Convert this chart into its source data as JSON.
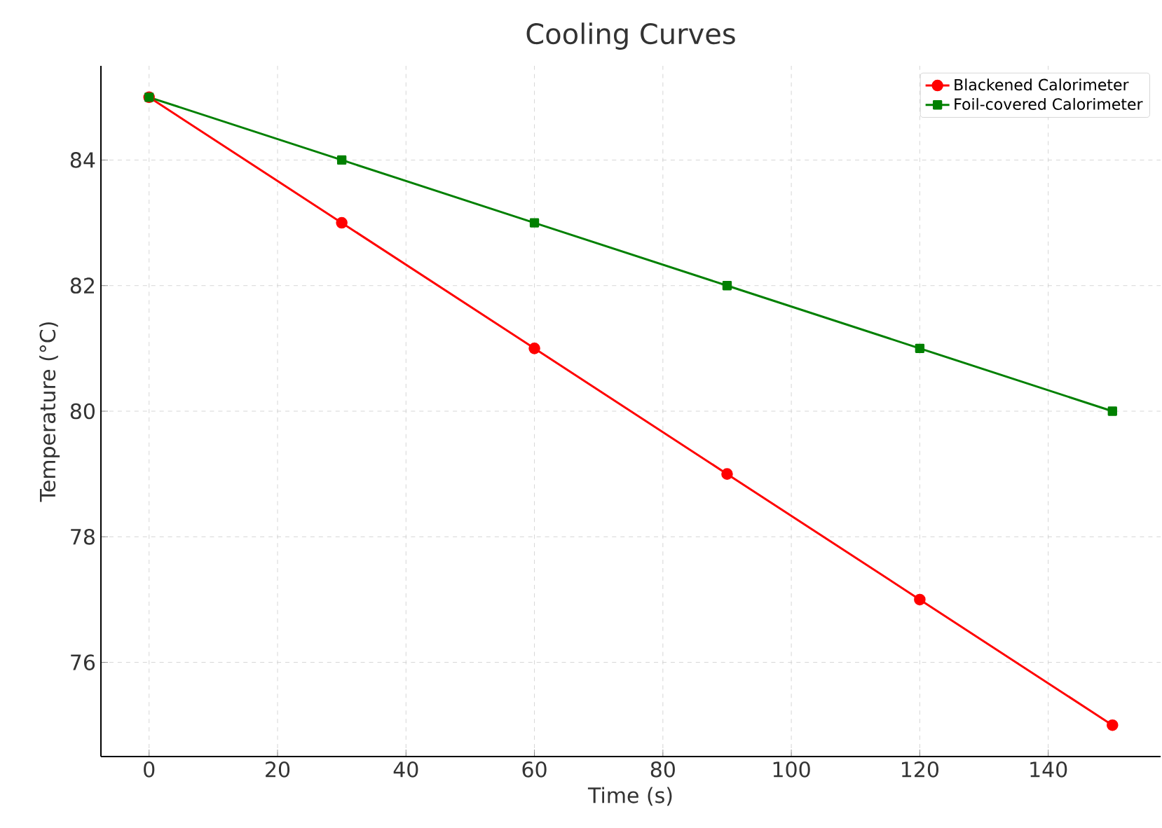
{
  "chart_data": {
    "type": "line",
    "title": "Cooling Curves",
    "xlabel": "Time (s)",
    "ylabel": "Temperature (°C)",
    "x": [
      0,
      30,
      60,
      90,
      120,
      150
    ],
    "series": [
      {
        "name": "Blackened Calorimeter",
        "color": "#ff0000",
        "marker": "circle",
        "values": [
          85,
          83,
          81,
          79,
          77,
          75
        ]
      },
      {
        "name": "Foil-covered Calorimeter",
        "color": "#008000",
        "marker": "square",
        "values": [
          85,
          84,
          83,
          82,
          81,
          80
        ]
      }
    ],
    "xlim": [
      -7.5,
      157.5
    ],
    "ylim": [
      74.5,
      85.5
    ],
    "xticks": [
      0,
      20,
      40,
      60,
      80,
      100,
      120,
      140
    ],
    "yticks": [
      76,
      78,
      80,
      82,
      84
    ],
    "grid": true,
    "legend": "top right",
    "line_style": "solid"
  }
}
